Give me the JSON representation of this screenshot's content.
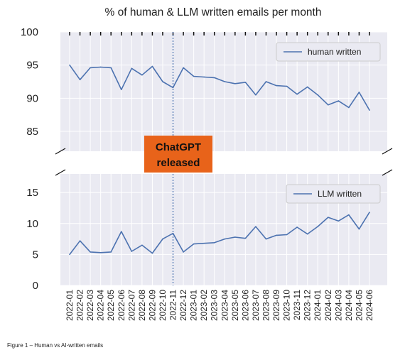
{
  "chart_data": {
    "type": "line",
    "title": "% of human & LLM written emails per month",
    "x": [
      "2022-01",
      "2022-02",
      "2022-03",
      "2022-04",
      "2022-05",
      "2022-06",
      "2022-07",
      "2022-08",
      "2022-09",
      "2022-10",
      "2022-11",
      "2022-12",
      "2023-01",
      "2023-02",
      "2023-03",
      "2023-04",
      "2023-05",
      "2023-06",
      "2023-07",
      "2023-08",
      "2023-09",
      "2023-10",
      "2023-11",
      "2023-12",
      "2024-01",
      "2024-02",
      "2024-03",
      "2024-04",
      "2024-05",
      "2024-06"
    ],
    "series": [
      {
        "name": "human written",
        "values": [
          95.0,
          92.8,
          94.6,
          94.7,
          94.6,
          91.3,
          94.5,
          93.5,
          94.8,
          92.5,
          91.6,
          94.6,
          93.3,
          93.2,
          93.1,
          92.5,
          92.2,
          92.4,
          90.5,
          92.5,
          91.9,
          91.8,
          90.6,
          91.7,
          90.5,
          89.0,
          89.6,
          88.6,
          90.9,
          88.2
        ]
      },
      {
        "name": "LLM written",
        "values": [
          5.0,
          7.2,
          5.4,
          5.3,
          5.4,
          8.7,
          5.5,
          6.5,
          5.2,
          7.5,
          8.4,
          5.4,
          6.7,
          6.8,
          6.9,
          7.5,
          7.8,
          7.6,
          9.5,
          7.5,
          8.1,
          8.2,
          9.4,
          8.3,
          9.5,
          11.0,
          10.4,
          11.4,
          9.1,
          11.8
        ]
      }
    ],
    "upper_ylim": [
      82,
      100
    ],
    "lower_ylim": [
      0,
      18
    ],
    "upper_yticks": [
      85,
      90,
      95,
      100
    ],
    "lower_yticks": [
      0,
      5,
      10,
      15
    ],
    "broken_axis": true,
    "grid": true,
    "legend_placement": "top-right",
    "annotation": {
      "text_line1": "ChatGPT",
      "text_line2": "released",
      "x": "2022-11"
    }
  },
  "caption": "Figure 1 – Human vs AI-written emails",
  "colors": {
    "line": "#4c72b0",
    "background": "#eaeaf2",
    "grid": "#ffffff",
    "annotation_box": "#e8631a",
    "vline": "#4c72b0"
  }
}
